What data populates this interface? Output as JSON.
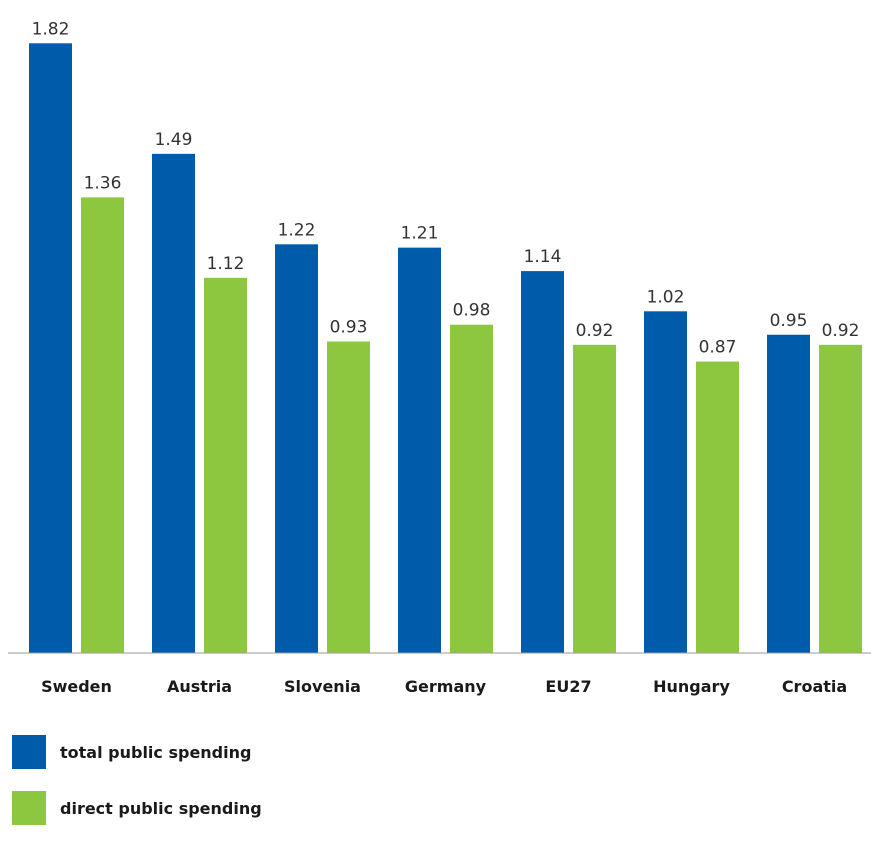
{
  "chart_data": {
    "type": "bar",
    "categories": [
      "Sweden",
      "Austria",
      "Slovenia",
      "Germany",
      "EU27",
      "Hungary",
      "Croatia"
    ],
    "series": [
      {
        "name": "total public spending",
        "color": "#005BAA",
        "values": [
          1.82,
          1.49,
          1.22,
          1.21,
          1.14,
          1.02,
          0.95
        ]
      },
      {
        "name": "direct public spending",
        "color": "#8DC63F",
        "values": [
          1.36,
          1.12,
          0.93,
          0.98,
          0.92,
          0.87,
          0.92
        ]
      }
    ],
    "ylim": [
      0,
      1.9
    ],
    "grid": false,
    "legend": "bottom-left",
    "data_labels": true
  }
}
